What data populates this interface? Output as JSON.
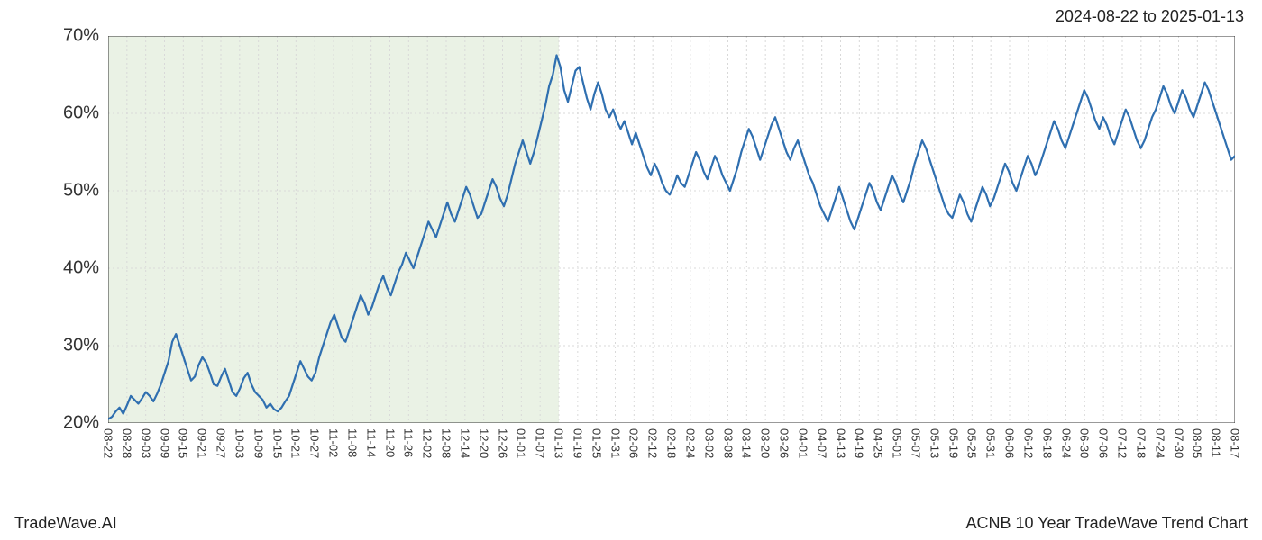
{
  "header": {
    "date_range": "2024-08-22 to 2025-01-13"
  },
  "footer": {
    "brand": "TradeWave.AI",
    "chart_title": "ACNB 10 Year TradeWave Trend Chart"
  },
  "chart": {
    "type": "line",
    "background_color": "#ffffff",
    "grid_color": "#d9d9d9",
    "grid_dash": "2,3",
    "axis_color": "#333333",
    "line_color": "#2f6fb0",
    "line_width": 2.2,
    "highlight": {
      "fill": "#d9e8d0",
      "opacity": 0.55,
      "x_start_index": 0,
      "x_end_index": 24
    },
    "ylim": [
      20,
      70
    ],
    "yticks": [
      20,
      30,
      40,
      50,
      60,
      70
    ],
    "ytick_labels": [
      "20%",
      "30%",
      "40%",
      "50%",
      "60%",
      "70%"
    ],
    "ytick_fontsize": 20,
    "x_labels": [
      "08-22",
      "08-28",
      "09-03",
      "09-09",
      "09-15",
      "09-21",
      "09-27",
      "10-03",
      "10-09",
      "10-15",
      "10-21",
      "10-27",
      "11-02",
      "11-08",
      "11-14",
      "11-20",
      "11-26",
      "12-02",
      "12-08",
      "12-14",
      "12-20",
      "12-26",
      "01-01",
      "01-07",
      "01-13",
      "01-19",
      "01-25",
      "01-31",
      "02-06",
      "02-12",
      "02-18",
      "02-24",
      "03-02",
      "03-08",
      "03-14",
      "03-20",
      "03-26",
      "04-01",
      "04-07",
      "04-13",
      "04-19",
      "04-25",
      "05-01",
      "05-07",
      "05-13",
      "05-19",
      "05-25",
      "05-31",
      "06-06",
      "06-12",
      "06-18",
      "06-24",
      "06-30",
      "07-06",
      "07-12",
      "07-18",
      "07-24",
      "07-30",
      "08-05",
      "08-11",
      "08-17"
    ],
    "xtick_fontsize": 13,
    "series": [
      20.5,
      20.8,
      21.5,
      22.0,
      21.2,
      22.3,
      23.5,
      23.0,
      22.5,
      23.2,
      24.0,
      23.5,
      22.8,
      23.8,
      25.0,
      26.5,
      28.0,
      30.5,
      31.5,
      30.0,
      28.5,
      27.0,
      25.5,
      26.0,
      27.5,
      28.5,
      27.8,
      26.5,
      25.0,
      24.8,
      26.0,
      27.0,
      25.5,
      24.0,
      23.5,
      24.5,
      25.8,
      26.5,
      25.0,
      24.0,
      23.5,
      23.0,
      22.0,
      22.5,
      21.8,
      21.5,
      22.0,
      22.8,
      23.5,
      25.0,
      26.5,
      28.0,
      27.0,
      26.0,
      25.5,
      26.5,
      28.5,
      30.0,
      31.5,
      33.0,
      34.0,
      32.5,
      31.0,
      30.5,
      32.0,
      33.5,
      35.0,
      36.5,
      35.5,
      34.0,
      35.0,
      36.5,
      38.0,
      39.0,
      37.5,
      36.5,
      38.0,
      39.5,
      40.5,
      42.0,
      41.0,
      40.0,
      41.5,
      43.0,
      44.5,
      46.0,
      45.0,
      44.0,
      45.5,
      47.0,
      48.5,
      47.0,
      46.0,
      47.5,
      49.0,
      50.5,
      49.5,
      48.0,
      46.5,
      47.0,
      48.5,
      50.0,
      51.5,
      50.5,
      49.0,
      48.0,
      49.5,
      51.5,
      53.5,
      55.0,
      56.5,
      55.0,
      53.5,
      55.0,
      57.0,
      59.0,
      61.0,
      63.5,
      65.0,
      67.5,
      66.0,
      63.0,
      61.5,
      63.5,
      65.5,
      66.0,
      64.0,
      62.0,
      60.5,
      62.5,
      64.0,
      62.5,
      60.5,
      59.5,
      60.5,
      59.0,
      58.0,
      59.0,
      57.5,
      56.0,
      57.5,
      56.0,
      54.5,
      53.0,
      52.0,
      53.5,
      52.5,
      51.0,
      50.0,
      49.5,
      50.5,
      52.0,
      51.0,
      50.5,
      52.0,
      53.5,
      55.0,
      54.0,
      52.5,
      51.5,
      53.0,
      54.5,
      53.5,
      52.0,
      51.0,
      50.0,
      51.5,
      53.0,
      55.0,
      56.5,
      58.0,
      57.0,
      55.5,
      54.0,
      55.5,
      57.0,
      58.5,
      59.5,
      58.0,
      56.5,
      55.0,
      54.0,
      55.5,
      56.5,
      55.0,
      53.5,
      52.0,
      51.0,
      49.5,
      48.0,
      47.0,
      46.0,
      47.5,
      49.0,
      50.5,
      49.0,
      47.5,
      46.0,
      45.0,
      46.5,
      48.0,
      49.5,
      51.0,
      50.0,
      48.5,
      47.5,
      49.0,
      50.5,
      52.0,
      51.0,
      49.5,
      48.5,
      50.0,
      51.5,
      53.5,
      55.0,
      56.5,
      55.5,
      54.0,
      52.5,
      51.0,
      49.5,
      48.0,
      47.0,
      46.5,
      48.0,
      49.5,
      48.5,
      47.0,
      46.0,
      47.5,
      49.0,
      50.5,
      49.5,
      48.0,
      49.0,
      50.5,
      52.0,
      53.5,
      52.5,
      51.0,
      50.0,
      51.5,
      53.0,
      54.5,
      53.5,
      52.0,
      53.0,
      54.5,
      56.0,
      57.5,
      59.0,
      58.0,
      56.5,
      55.5,
      57.0,
      58.5,
      60.0,
      61.5,
      63.0,
      62.0,
      60.5,
      59.0,
      58.0,
      59.5,
      58.5,
      57.0,
      56.0,
      57.5,
      59.0,
      60.5,
      59.5,
      58.0,
      56.5,
      55.5,
      56.5,
      58.0,
      59.5,
      60.5,
      62.0,
      63.5,
      62.5,
      61.0,
      60.0,
      61.5,
      63.0,
      62.0,
      60.5,
      59.5,
      61.0,
      62.5,
      64.0,
      63.0,
      61.5,
      60.0,
      58.5,
      57.0,
      55.5,
      54.0,
      54.5
    ]
  }
}
